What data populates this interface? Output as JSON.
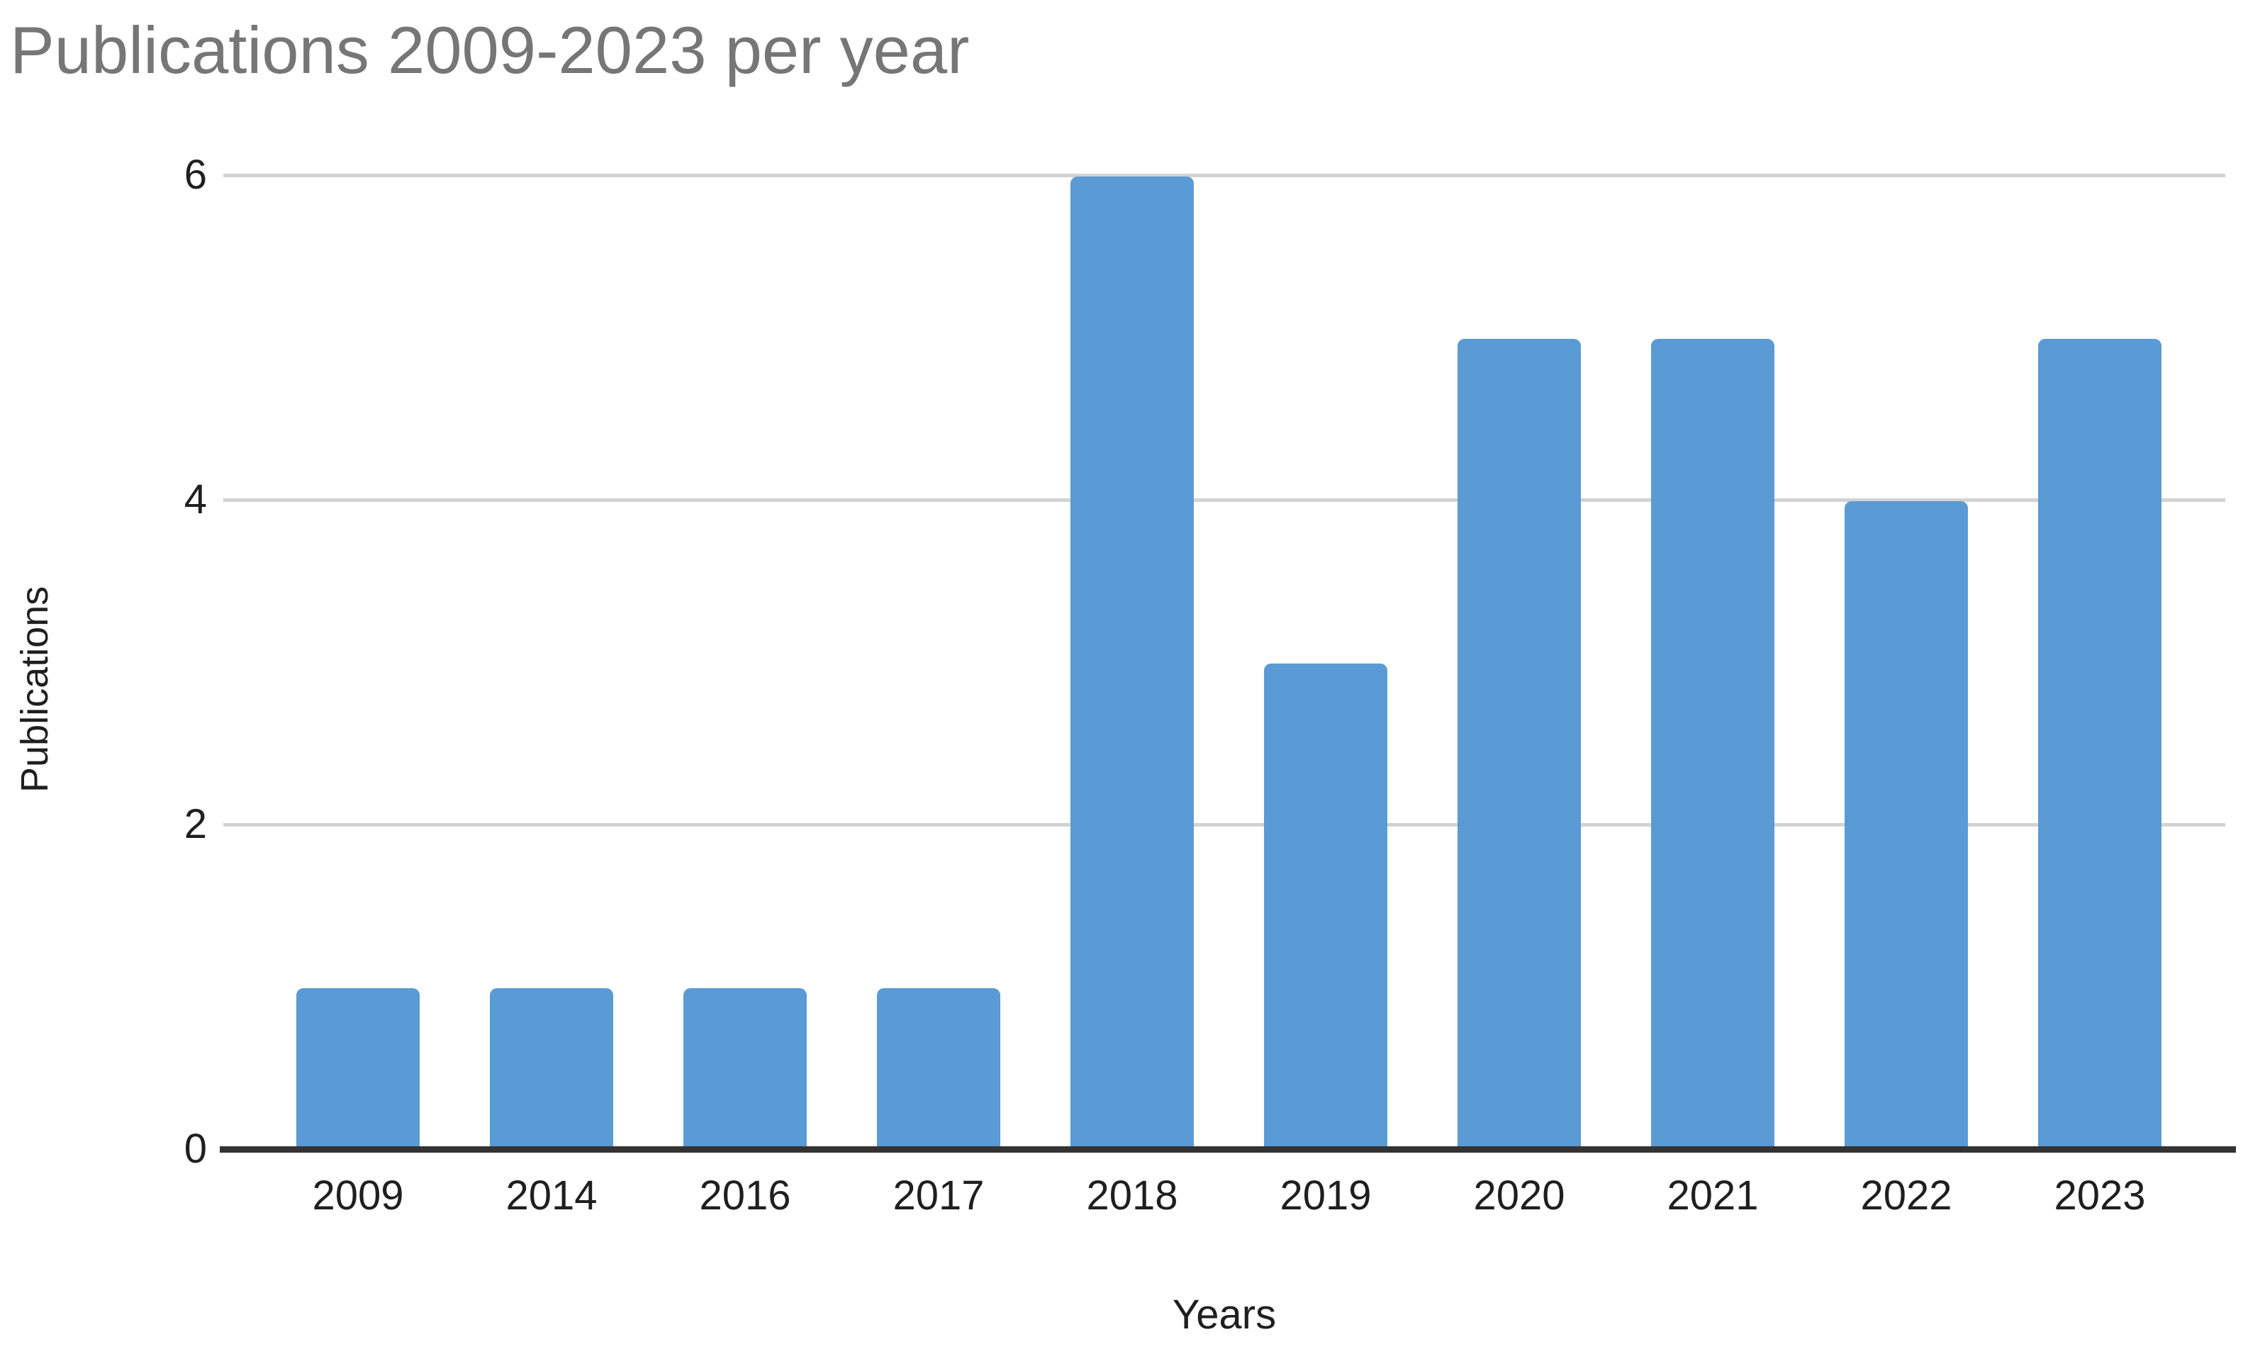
{
  "chart_data": {
    "type": "bar",
    "title": "Publications 2009-2023 per year",
    "categories": [
      "2009",
      "2014",
      "2016",
      "2017",
      "2018",
      "2019",
      "2020",
      "2021",
      "2022",
      "2023"
    ],
    "values": [
      1,
      1,
      1,
      1,
      6,
      3,
      5,
      5,
      4,
      5
    ],
    "series_name": "Publications",
    "xlabel": "Years",
    "ylabel": "Publications",
    "yticks": [
      0,
      2,
      4,
      6
    ],
    "ylim": [
      0,
      6
    ],
    "grid": true,
    "legend_position": "none",
    "colors": {
      "bar": "#5a9ad5",
      "gridline": "#d2d2d2",
      "axis_line": "#333333",
      "tick_label": "#1f1f1f",
      "title": "#767676",
      "background": "#ffffff"
    }
  }
}
